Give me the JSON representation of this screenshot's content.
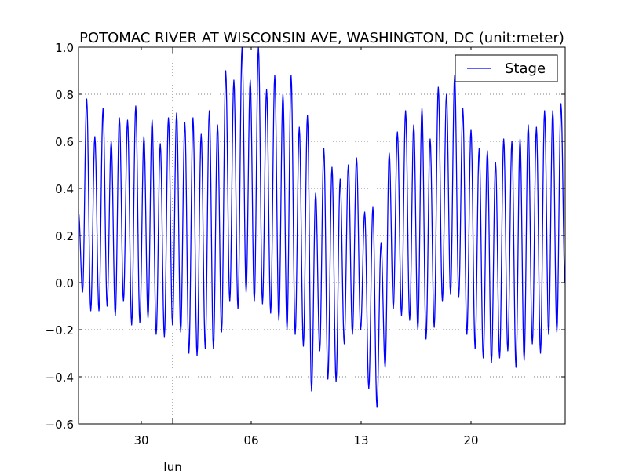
{
  "chart_data": {
    "type": "line",
    "title": "POTOMAC RIVER AT WISCONSIN AVE, WASHINGTON, DC (unit:meter)",
    "xlabel": "",
    "ylabel": "",
    "ylim": [
      -0.6,
      1.0
    ],
    "xlim": [
      "2016-05-26 00:00",
      "2016-06-26 00:00"
    ],
    "yticks": [
      -0.6,
      -0.4,
      -0.2,
      0.0,
      0.2,
      0.4,
      0.6,
      0.8,
      1.0
    ],
    "ytick_labels": [
      "−0.6",
      "−0.4",
      "−0.2",
      "0.0",
      "0.2",
      "0.4",
      "0.6",
      "0.8",
      "1.0"
    ],
    "xticks": [
      "2016-05-30",
      "2016-06-06",
      "2016-06-13",
      "2016-06-20"
    ],
    "xtick_labels": [
      "30",
      "06",
      "13",
      "20"
    ],
    "x_major_label": "Jun",
    "x_major_tick": "2016-06-01",
    "grid": true,
    "legend_position": "top-right",
    "color": "#0000ff",
    "series": [
      {
        "name": "Stage",
        "color": "#0000ff",
        "x": [
          "2016-05-26 00:00",
          "2016-05-26 06:15",
          "2016-05-26 12:30",
          "2016-05-26 18:45",
          "2016-05-27 01:00",
          "2016-05-27 07:15",
          "2016-05-27 13:30",
          "2016-05-27 19:45",
          "2016-05-28 02:00",
          "2016-05-28 08:15",
          "2016-05-28 14:30",
          "2016-05-28 20:45",
          "2016-05-29 03:00",
          "2016-05-29 09:15",
          "2016-05-29 15:30",
          "2016-05-29 21:45",
          "2016-05-30 04:00",
          "2016-05-30 10:15",
          "2016-05-30 16:30",
          "2016-05-30 22:45",
          "2016-05-31 05:00",
          "2016-05-31 11:15",
          "2016-05-31 17:30",
          "2016-05-31 23:45",
          "2016-06-01 06:00",
          "2016-06-01 12:15",
          "2016-06-01 18:30",
          "2016-06-02 00:45",
          "2016-06-02 07:00",
          "2016-06-02 13:15",
          "2016-06-02 19:30",
          "2016-06-03 01:45",
          "2016-06-03 08:00",
          "2016-06-03 14:15",
          "2016-06-03 20:30",
          "2016-06-04 02:45",
          "2016-06-04 09:00",
          "2016-06-04 15:15",
          "2016-06-04 21:30",
          "2016-06-05 03:45",
          "2016-06-05 10:00",
          "2016-06-05 16:15",
          "2016-06-05 22:30",
          "2016-06-06 04:45",
          "2016-06-06 11:00",
          "2016-06-06 17:15",
          "2016-06-06 23:30",
          "2016-06-07 05:45",
          "2016-06-07 12:00",
          "2016-06-07 18:15",
          "2016-06-08 00:30",
          "2016-06-08 06:45",
          "2016-06-08 13:00",
          "2016-06-08 19:15",
          "2016-06-09 01:30",
          "2016-06-09 07:45",
          "2016-06-09 14:00",
          "2016-06-09 20:15",
          "2016-06-10 02:30",
          "2016-06-10 08:45",
          "2016-06-10 15:00",
          "2016-06-10 21:15",
          "2016-06-11 03:30",
          "2016-06-11 09:45",
          "2016-06-11 16:00",
          "2016-06-11 22:15",
          "2016-06-12 04:30",
          "2016-06-12 10:45",
          "2016-06-12 17:00",
          "2016-06-12 23:15",
          "2016-06-13 05:30",
          "2016-06-13 11:45",
          "2016-06-13 18:00",
          "2016-06-14 00:15",
          "2016-06-14 06:30",
          "2016-06-14 12:45",
          "2016-06-14 19:00",
          "2016-06-15 01:15",
          "2016-06-15 07:30",
          "2016-06-15 13:45",
          "2016-06-15 20:00",
          "2016-06-16 02:15",
          "2016-06-16 08:30",
          "2016-06-16 14:45",
          "2016-06-16 21:00",
          "2016-06-17 03:15",
          "2016-06-17 09:30",
          "2016-06-17 15:45",
          "2016-06-17 22:00",
          "2016-06-18 04:15",
          "2016-06-18 10:30",
          "2016-06-18 16:45",
          "2016-06-18 23:00",
          "2016-06-19 05:15",
          "2016-06-19 11:30",
          "2016-06-19 17:45",
          "2016-06-20 00:00",
          "2016-06-20 06:15",
          "2016-06-20 12:30",
          "2016-06-20 18:45",
          "2016-06-21 01:00",
          "2016-06-21 07:15",
          "2016-06-21 13:30",
          "2016-06-21 19:45",
          "2016-06-22 02:00",
          "2016-06-22 08:15",
          "2016-06-22 14:30",
          "2016-06-22 20:45",
          "2016-06-23 03:00",
          "2016-06-23 09:15",
          "2016-06-23 15:30",
          "2016-06-23 21:45",
          "2016-06-24 04:00",
          "2016-06-24 10:15",
          "2016-06-24 16:30",
          "2016-06-24 22:45",
          "2016-06-25 05:00",
          "2016-06-25 11:15",
          "2016-06-25 17:30",
          "2016-06-25 23:45"
        ],
        "values": [
          0.3,
          -0.04,
          0.78,
          -0.12,
          0.62,
          -0.12,
          0.74,
          -0.1,
          0.6,
          -0.14,
          0.7,
          -0.08,
          0.69,
          -0.18,
          0.75,
          -0.17,
          0.62,
          -0.15,
          0.69,
          -0.22,
          0.59,
          -0.23,
          0.7,
          -0.18,
          0.72,
          -0.21,
          0.68,
          -0.3,
          0.7,
          -0.31,
          0.63,
          -0.28,
          0.73,
          -0.28,
          0.67,
          -0.21,
          0.9,
          -0.08,
          0.86,
          -0.11,
          1.0,
          -0.04,
          0.86,
          -0.08,
          1.0,
          -0.09,
          0.82,
          -0.13,
          0.88,
          -0.16,
          0.8,
          -0.2,
          0.88,
          -0.22,
          0.66,
          -0.27,
          0.71,
          -0.46,
          0.38,
          -0.29,
          0.57,
          -0.41,
          0.49,
          -0.42,
          0.44,
          -0.26,
          0.5,
          -0.22,
          0.53,
          -0.2,
          0.3,
          -0.45,
          0.32,
          -0.53,
          0.17,
          -0.36,
          0.55,
          -0.11,
          0.64,
          -0.14,
          0.73,
          -0.16,
          0.67,
          -0.2,
          0.74,
          -0.24,
          0.61,
          -0.19,
          0.83,
          -0.08,
          0.8,
          -0.05,
          0.88,
          -0.06,
          0.74,
          -0.22,
          0.65,
          -0.28,
          0.57,
          -0.32,
          0.56,
          -0.34,
          0.51,
          -0.32,
          0.61,
          -0.29,
          0.6,
          -0.36,
          0.61,
          -0.33,
          0.67,
          -0.26,
          0.66,
          -0.3,
          0.73,
          -0.22,
          0.73,
          -0.21,
          0.76,
          0.0
        ]
      }
    ]
  }
}
